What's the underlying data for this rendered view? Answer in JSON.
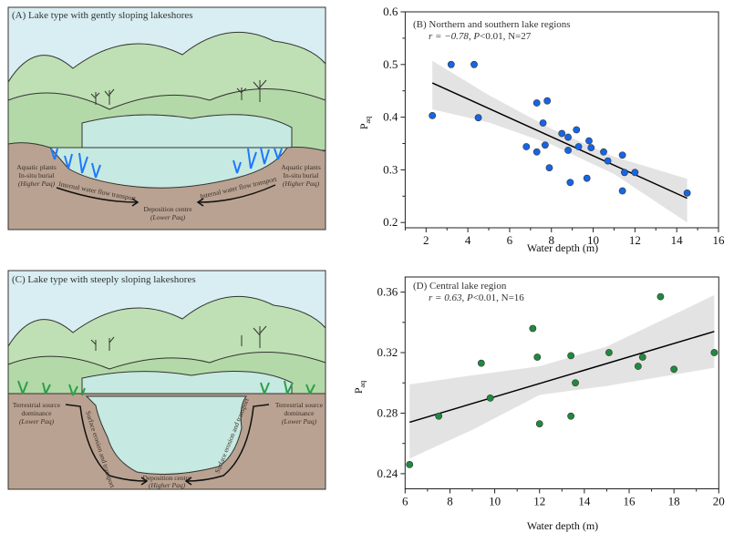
{
  "panel_a": {
    "title": "(A) Lake type with gently sloping lakeshores",
    "left_label": [
      "Aquatic plants",
      "In-situ burial",
      "(Higher Paq)"
    ],
    "right_label": [
      "Aquatic plants",
      "In-situ burial",
      "(Higher Paq)"
    ],
    "flow_left": "Internal water flow transport",
    "flow_right": "Internal water flow transport",
    "centre": [
      "Deposition centre",
      "(Lower Paq)"
    ]
  },
  "panel_c": {
    "title": "(C) Lake type with steeply sloping lakeshores",
    "left_label": [
      "Terrestrial source",
      "dominance",
      "(Lower Paq)"
    ],
    "right_label": [
      "Terrestrial source",
      "dominance",
      "(Lower Paq)"
    ],
    "flow_left": "Surface erosion and transport",
    "flow_right": "Surface erosion and transport",
    "centre": [
      "Deposition centre",
      "(Higher Paq)"
    ]
  },
  "colors": {
    "sky": "#d8eef2",
    "hills": "#bfe0b4",
    "soil": "#b9a291",
    "water": "#c6e9e1",
    "aquatic_plants": "#1e78ff",
    "terrestrial_plants": "#2e9e4a",
    "series_b": "#1565e6",
    "series_d": "#1f8a3e",
    "ci_band": "#e3e3e3"
  },
  "chart_data": [
    {
      "type": "scatter",
      "title": "(B) Northern and southern lake regions",
      "stats": {
        "r": "r = −0.78, ",
        "p": "P",
        "rest": "<0.01, N=27"
      },
      "xlabel": "Water depth (m)",
      "ylabel": "P",
      "ylabel_sub": "aq",
      "xlim": [
        1,
        16
      ],
      "ylim": [
        0.19,
        0.6
      ],
      "xticks": [
        2,
        4,
        6,
        8,
        10,
        12,
        14,
        16
      ],
      "yticks": [
        0.2,
        0.3,
        0.4,
        0.5,
        0.6
      ],
      "x": [
        2.3,
        3.2,
        4.3,
        4.5,
        7.3,
        7.8,
        7.6,
        8.5,
        8.8,
        9.2,
        9.8,
        6.8,
        7.3,
        7.7,
        8.8,
        9.3,
        9.9,
        10.5,
        10.7,
        11.4,
        7.9,
        8.9,
        9.7,
        11.5,
        12.0,
        11.4,
        14.5
      ],
      "y": [
        0.403,
        0.5,
        0.5,
        0.399,
        0.427,
        0.431,
        0.389,
        0.369,
        0.362,
        0.376,
        0.355,
        0.344,
        0.334,
        0.347,
        0.337,
        0.344,
        0.342,
        0.334,
        0.317,
        0.328,
        0.304,
        0.276,
        0.284,
        0.295,
        0.295,
        0.26,
        0.256
      ],
      "fit": {
        "x": [
          2.3,
          14.5
        ],
        "y": [
          0.465,
          0.246
        ]
      },
      "ci": {
        "x": [
          2.3,
          5,
          8,
          11,
          14.5
        ],
        "upper": [
          0.507,
          0.442,
          0.378,
          0.325,
          0.283
        ],
        "lower": [
          0.415,
          0.39,
          0.348,
          0.292,
          0.2
        ]
      }
    },
    {
      "type": "scatter",
      "title": "(D) Central lake region",
      "stats": {
        "r": "r = 0.63, ",
        "p": "P",
        "rest": "<0.01, N=16"
      },
      "xlabel": "Water depth (m)",
      "ylabel": "P",
      "ylabel_sub": "aq",
      "xlim": [
        6,
        20
      ],
      "ylim": [
        0.23,
        0.37
      ],
      "xticks": [
        6,
        8,
        10,
        12,
        14,
        16,
        18,
        20
      ],
      "yticks": [
        0.24,
        0.28,
        0.32,
        0.36
      ],
      "x": [
        6.2,
        7.5,
        9.4,
        9.8,
        11.7,
        11.9,
        12.0,
        13.4,
        13.4,
        13.6,
        15.1,
        16.4,
        16.6,
        17.4,
        18.0,
        19.8
      ],
      "y": [
        0.246,
        0.278,
        0.313,
        0.29,
        0.336,
        0.317,
        0.273,
        0.318,
        0.278,
        0.3,
        0.32,
        0.311,
        0.317,
        0.357,
        0.309,
        0.32
      ],
      "fit": {
        "x": [
          6.2,
          19.8
        ],
        "y": [
          0.274,
          0.334
        ]
      },
      "ci": {
        "x": [
          6.2,
          9,
          12,
          15,
          19.8
        ],
        "upper": [
          0.299,
          0.305,
          0.311,
          0.324,
          0.358
        ],
        "lower": [
          0.25,
          0.269,
          0.292,
          0.298,
          0.31
        ]
      }
    }
  ]
}
